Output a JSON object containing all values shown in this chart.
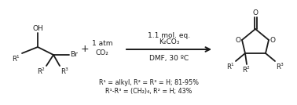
{
  "bg_color": "#ffffff",
  "line_color": "#1a1a1a",
  "fig_width": 3.78,
  "fig_height": 1.34,
  "dpi": 100,
  "arrow_above1": "1.1 mol. eq.",
  "arrow_above2": "K₂CO₃",
  "arrow_below": "DMF, 30 ºC",
  "co2_label1": "1 atm",
  "co2_label2": "CO₂",
  "yield_line1": "R¹ = alkyl, R² = R³ = H; 81-95%",
  "yield_line2": "R¹-R³ = (CH₂)₄, R² = H; 43%"
}
